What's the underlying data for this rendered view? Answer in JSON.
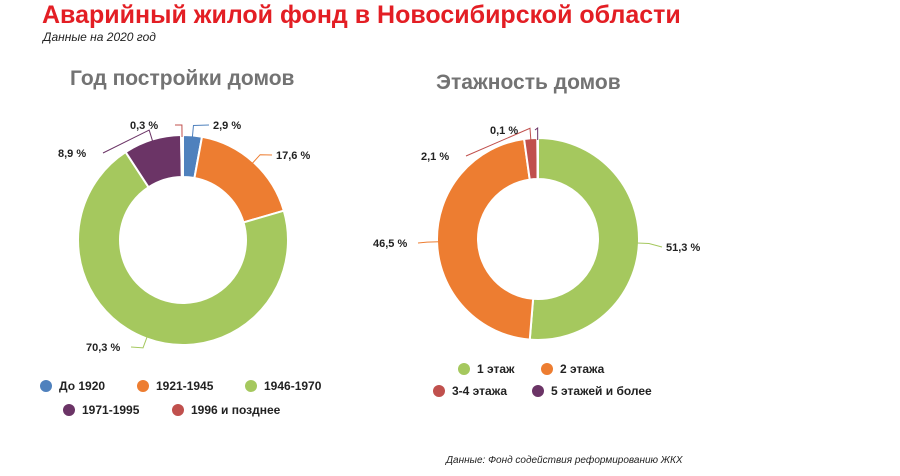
{
  "header": {
    "title": "Аварийный жилой фонд  в Новосибирской области",
    "subtitle": "Данные на 2020 год"
  },
  "source": "Данные: Фонд содействия реформированию ЖКХ",
  "chart_data": [
    {
      "type": "pie",
      "subtype": "donut",
      "title": "Год постройки домов",
      "categories": [
        "До 1920",
        "1921-1945",
        "1946-1970",
        "1971-1995",
        "1996 и позднее"
      ],
      "values": [
        2.9,
        17.6,
        70.3,
        8.9,
        0.3
      ],
      "labels": [
        "2,9 %",
        "17,6 %",
        "70,3 %",
        "8,9 %",
        "0,3 %"
      ],
      "colors": [
        "#4f81bd",
        "#ed7d31",
        "#a5c85e",
        "#6b3466",
        "#c0504d"
      ],
      "legend_position": "bottom"
    },
    {
      "type": "pie",
      "subtype": "donut",
      "title": "Этажность домов",
      "categories": [
        "1 этаж",
        "2 этажа",
        "3-4 этажа",
        "5 этажей и более"
      ],
      "values": [
        51.3,
        46.5,
        2.1,
        0.1
      ],
      "labels": [
        "51,3 %",
        "46,5 %",
        "2,1 %",
        "0,1 %"
      ],
      "colors": [
        "#a5c85e",
        "#ed7d31",
        "#c0504d",
        "#6b3466"
      ],
      "legend_position": "bottom"
    }
  ]
}
